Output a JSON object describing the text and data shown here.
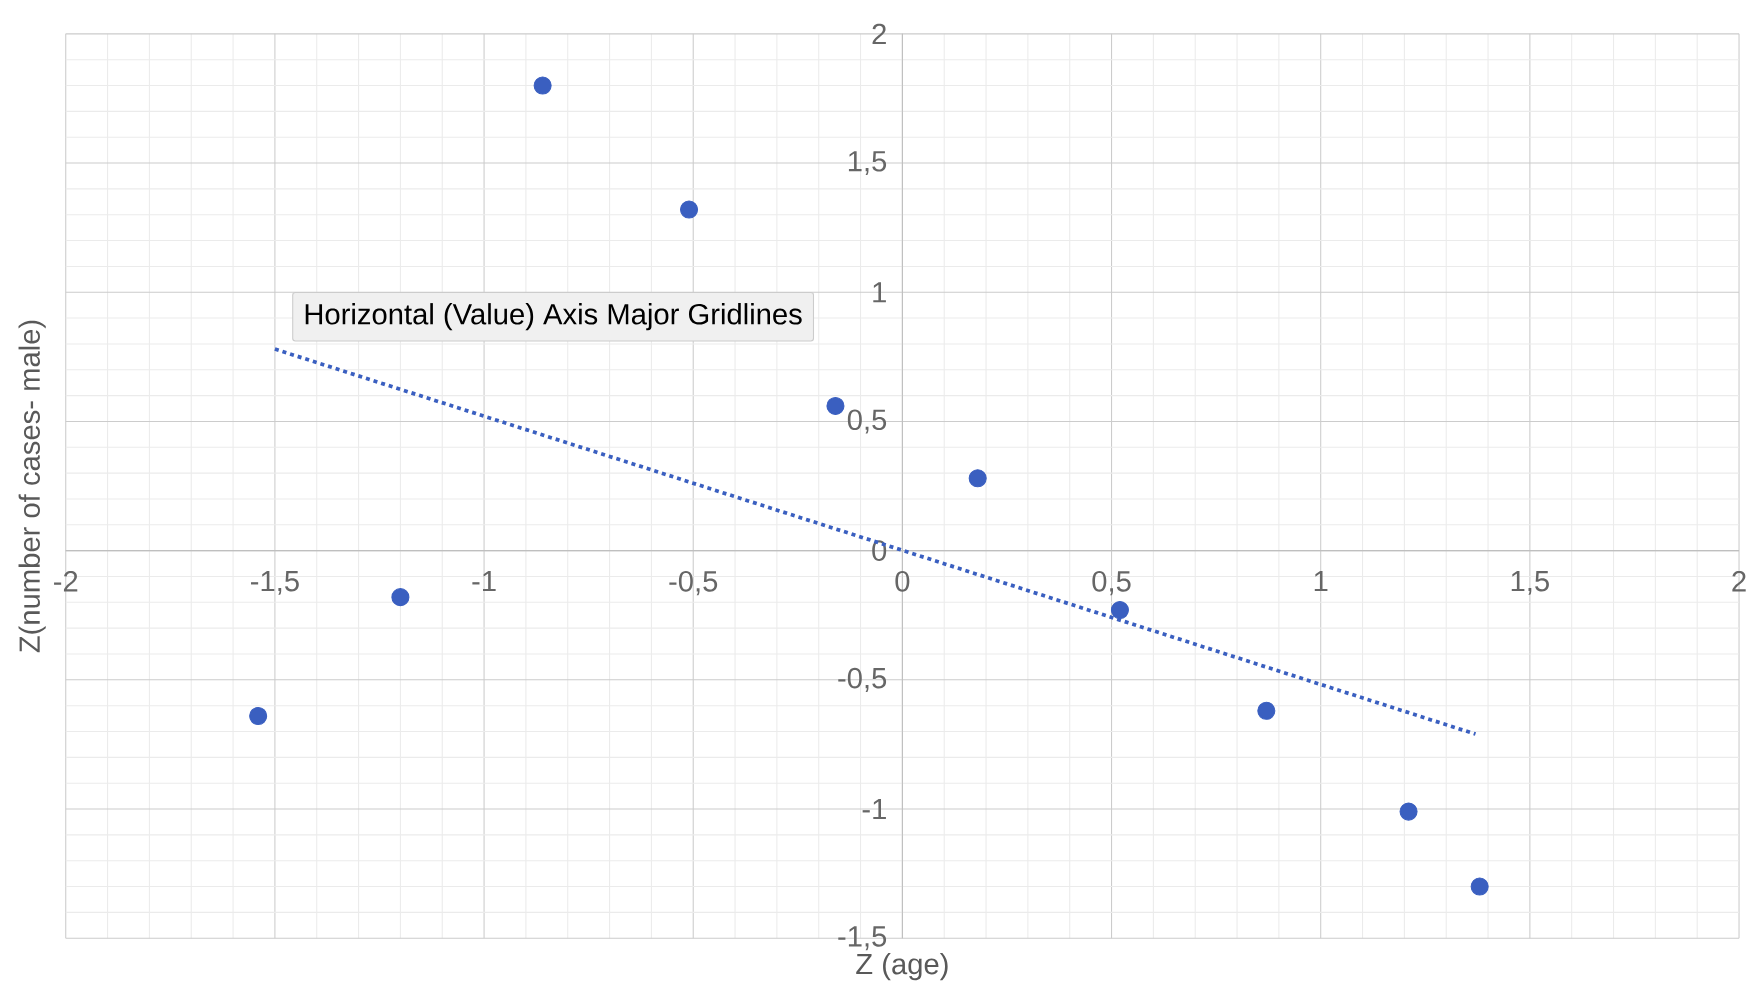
{
  "chart_data": {
    "type": "scatter",
    "xlabel": "Z (age)",
    "ylabel": "Z(number of cases- male)",
    "annotations": [
      "Horizontal (Value) Axis Major Gridlines"
    ],
    "xlim": [
      -2,
      2
    ],
    "ylim": [
      -1.5,
      2
    ],
    "xticks": [
      {
        "value": -2,
        "label": "-2"
      },
      {
        "value": -1.5,
        "label": "-1,5"
      },
      {
        "value": -1,
        "label": "-1"
      },
      {
        "value": -0.5,
        "label": "-0,5"
      },
      {
        "value": 0,
        "label": "0"
      },
      {
        "value": 0.5,
        "label": "0,5"
      },
      {
        "value": 1,
        "label": "1"
      },
      {
        "value": 1.5,
        "label": "1,5"
      },
      {
        "value": 2,
        "label": "2"
      }
    ],
    "yticks": [
      {
        "value": -1.5,
        "label": "-1,5"
      },
      {
        "value": -1,
        "label": "-1"
      },
      {
        "value": -0.5,
        "label": "-0,5"
      },
      {
        "value": 0,
        "label": "0"
      },
      {
        "value": 0.5,
        "label": "0,5"
      },
      {
        "value": 1,
        "label": "1"
      },
      {
        "value": 1.5,
        "label": "1,5"
      },
      {
        "value": 2,
        "label": "2"
      }
    ],
    "grid": true,
    "marker": "circle",
    "series": [
      {
        "color": "#3a5fc0",
        "x": [
          -1.54,
          -1.2,
          -0.86,
          -0.51,
          -0.16,
          0.18,
          0.52,
          0.87,
          1.21,
          1.38
        ],
        "values": [
          -0.64,
          -0.18,
          1.8,
          1.32,
          0.56,
          0.28,
          -0.23,
          -0.62,
          -1.01,
          -1.3
        ]
      },
      {
        "type": "line",
        "line_style": "dotted",
        "marker": "none",
        "color": "#3a5fc0",
        "x": [
          -1.5,
          1.37
        ],
        "values": [
          0.78,
          -0.71
        ]
      }
    ]
  }
}
